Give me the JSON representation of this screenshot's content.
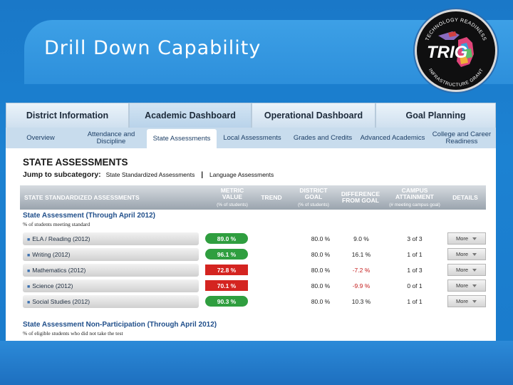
{
  "slide": {
    "title": "Drill Down Capability"
  },
  "logo": {
    "text": "TRIG",
    "ring_top": "TECHNOLOGY READINESS",
    "ring_bottom": "INFRASTRUCTURE GRANT"
  },
  "tabs": [
    {
      "label": "District Information"
    },
    {
      "label": "Academic Dashboard"
    },
    {
      "label": "Operational Dashboard"
    },
    {
      "label": "Goal Planning"
    }
  ],
  "subtabs": [
    {
      "label": "Overview"
    },
    {
      "label": "Attendance and Discipline"
    },
    {
      "label": "State Assessments"
    },
    {
      "label": "Local Assessments"
    },
    {
      "label": "Grades and Credits"
    },
    {
      "label": "Advanced Academics"
    },
    {
      "label": "College and Career Readiness"
    }
  ],
  "section": {
    "title": "STATE ASSESSMENTS",
    "jump_label": "Jump to subcategory:",
    "jump_link1": "State Standardized Assessments",
    "jump_sep": "|",
    "jump_link2": "Language Assessments"
  },
  "table_header": {
    "col1": "STATE STANDARDIZED ASSESSMENTS",
    "metric": "METRIC VALUE",
    "metric_sub": "(% of students)",
    "trend": "TREND",
    "goal": "DISTRICT GOAL",
    "goal_sub": "(% of students)",
    "diff": "DIFFERENCE FROM GOAL",
    "campus": "CAMPUS ATTAINMENT",
    "campus_sub": "(# meeting campus goal)",
    "details": "DETAILS"
  },
  "group1": {
    "title": "State Assessment (Through April 2012)",
    "subtitle": "% of students meeting standard",
    "rows": [
      {
        "label": "ELA / Reading (2012)",
        "metric": "89.0 %",
        "status": "green",
        "goal": "80.0 %",
        "diff": "9.0 %",
        "campus": "3 of 3",
        "details": "More"
      },
      {
        "label": "Writing (2012)",
        "metric": "96.1 %",
        "status": "green",
        "goal": "80.0 %",
        "diff": "16.1 %",
        "campus": "1 of 1",
        "details": "More"
      },
      {
        "label": "Mathematics (2012)",
        "metric": "72.8 %",
        "status": "red",
        "goal": "80.0 %",
        "diff": "-7.2 %",
        "campus": "1 of 3",
        "details": "More"
      },
      {
        "label": "Science (2012)",
        "metric": "70.1 %",
        "status": "red",
        "goal": "80.0 %",
        "diff": "-9.9 %",
        "campus": "0 of 1",
        "details": "More"
      },
      {
        "label": "Social Studies (2012)",
        "metric": "90.3 %",
        "status": "green",
        "goal": "80.0 %",
        "diff": "10.3 %",
        "campus": "1 of 1",
        "details": "More"
      }
    ]
  },
  "group2": {
    "title": "State Assessment Non-Participation (Through April 2012)",
    "subtitle": "% of eligible students who did not take the test"
  },
  "colors": {
    "good": "#2f9e3f",
    "bad": "#d42420",
    "header_blue": "#1f4e8a"
  }
}
